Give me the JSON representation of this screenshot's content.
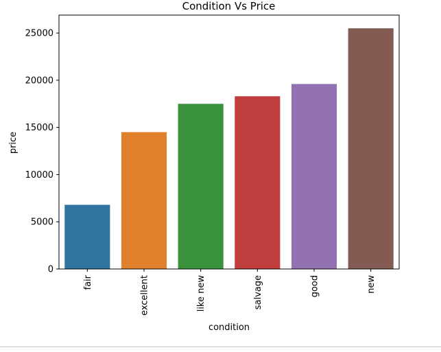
{
  "chart_data": {
    "type": "bar",
    "title": "Condition Vs Price",
    "xlabel": "condition",
    "ylabel": "price",
    "categories": [
      "fair",
      "excellent",
      "like new",
      "salvage",
      "good",
      "new"
    ],
    "values": [
      6800,
      14500,
      17500,
      18300,
      19600,
      25500
    ],
    "colors": [
      "#3274a1",
      "#e1812c",
      "#3a923a",
      "#c03d3e",
      "#9372b2",
      "#845b53"
    ],
    "ylim": [
      0,
      26900
    ],
    "yticks": [
      0,
      5000,
      10000,
      15000,
      20000,
      25000
    ],
    "grid": false,
    "legend": "none"
  }
}
